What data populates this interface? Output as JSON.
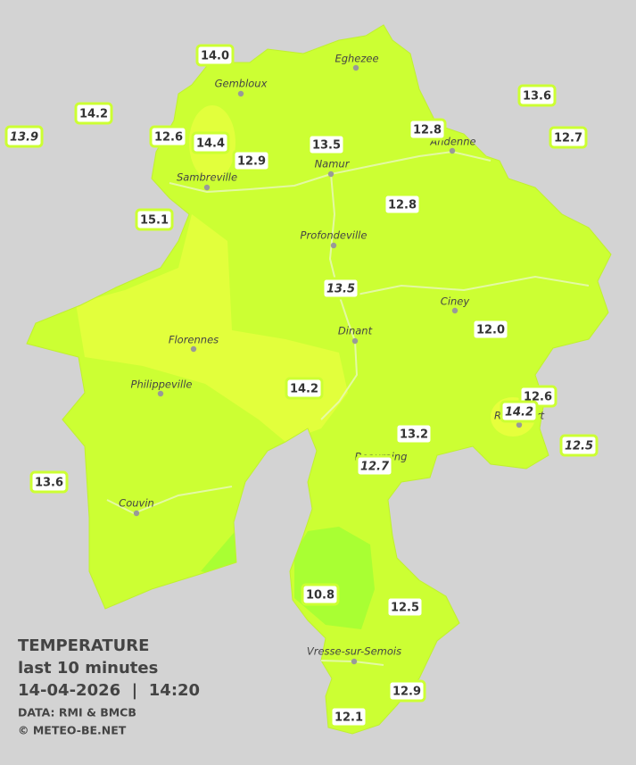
{
  "map": {
    "title": "TEMPERATURE",
    "subtitle": "last 10 minutes",
    "datetime": "14-04-2026  |  14:20",
    "source": "DATA: RMI & BMCB",
    "credit": "© METEO-BE.NET",
    "cities": [
      "Eghezee",
      "Gembloux",
      "Andenne",
      "Namur",
      "Sambreville",
      "Profondeville",
      "Ciney",
      "Dinant",
      "Florennes",
      "Philippeville",
      "Beauraing",
      "Rochefort",
      "Couvin",
      "Vresse-sur-Semois"
    ],
    "stations": [
      "14.0",
      "14.2",
      "13.9",
      "12.6",
      "14.4",
      "12.9",
      "13.5",
      "12.8",
      "13.6",
      "12.7",
      "15.1",
      "12.8",
      "13.5",
      "12.0",
      "14.2",
      "12.6",
      "14.2",
      "13.2",
      "12.5",
      "12.7",
      "13.6",
      "10.8",
      "12.5",
      "12.9",
      "12.1"
    ]
  }
}
